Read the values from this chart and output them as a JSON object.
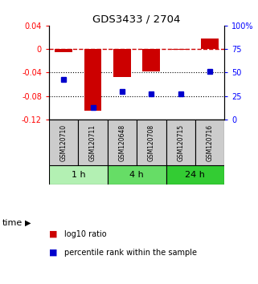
{
  "title": "GDS3433 / 2704",
  "samples": [
    "GSM120710",
    "GSM120711",
    "GSM120648",
    "GSM120708",
    "GSM120715",
    "GSM120716"
  ],
  "log10_ratio": [
    -0.005,
    -0.105,
    -0.047,
    -0.038,
    -0.001,
    0.018
  ],
  "percentile_rank": [
    43,
    13,
    30,
    27,
    27,
    51
  ],
  "ylim_left": [
    -0.12,
    0.04
  ],
  "ylim_right": [
    0,
    100
  ],
  "yticks_left": [
    0.04,
    0,
    -0.04,
    -0.08,
    -0.12
  ],
  "yticks_right": [
    100,
    75,
    50,
    25,
    0
  ],
  "ytick_labels_left": [
    "0.04",
    "0",
    "-0.04",
    "-0.08",
    "-0.12"
  ],
  "ytick_labels_right": [
    "100%",
    "75",
    "50",
    "25",
    "0"
  ],
  "time_groups": [
    {
      "label": "1 h",
      "start": 0,
      "end": 2,
      "color": "#b3f0b3"
    },
    {
      "label": "4 h",
      "start": 2,
      "end": 4,
      "color": "#66dd66"
    },
    {
      "label": "24 h",
      "start": 4,
      "end": 6,
      "color": "#33cc33"
    }
  ],
  "bar_color": "#cc0000",
  "dot_color": "#0000cc",
  "hline_color": "#cc0000",
  "grid_color": "#000000",
  "bg_color": "#ffffff",
  "sample_bg": "#cccccc",
  "legend_bar_label": "log10 ratio",
  "legend_dot_label": "percentile rank within the sample",
  "xlabel_time": "time"
}
